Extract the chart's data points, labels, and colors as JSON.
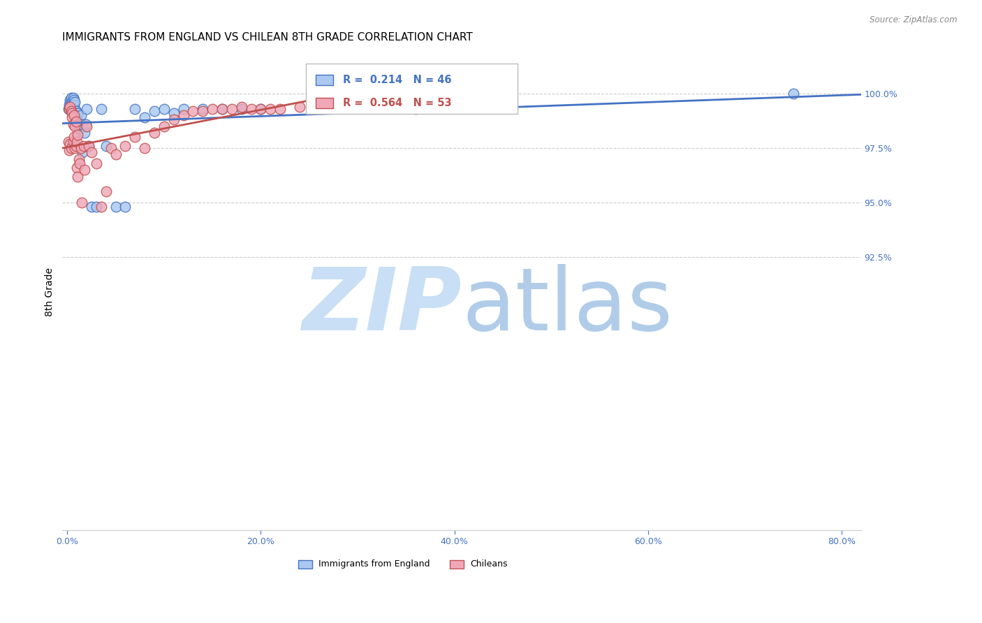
{
  "title": "IMMIGRANTS FROM ENGLAND VS CHILEAN 8TH GRADE CORRELATION CHART",
  "source": "Source: ZipAtlas.com",
  "xlabel_vals": [
    0.0,
    20.0,
    40.0,
    60.0,
    80.0
  ],
  "ylabel_vals": [
    92.5,
    95.0,
    97.5,
    100.0
  ],
  "ylabel_label": "8th Grade",
  "xmin": -0.5,
  "xmax": 82.0,
  "ymin": 80.0,
  "ymax": 101.8,
  "legend_label1": "Immigrants from England",
  "legend_label2": "Chileans",
  "color_blue": "#aac8f0",
  "color_pink": "#f0a8b8",
  "color_blue_line": "#4472c4",
  "color_pink_line": "#c0504d",
  "color_axis_label": "#4472c4",
  "watermark_zip_color": "#c8dff5",
  "watermark_atlas_color": "#b0cce8",
  "england_x": [
    0.1,
    0.2,
    0.3,
    0.3,
    0.4,
    0.4,
    0.5,
    0.5,
    0.6,
    0.6,
    0.7,
    0.7,
    0.8,
    0.8,
    0.9,
    0.9,
    1.0,
    1.0,
    1.1,
    1.2,
    1.3,
    1.4,
    1.5,
    1.6,
    1.8,
    1.9,
    2.0,
    2.2,
    2.5,
    3.0,
    3.5,
    4.0,
    5.0,
    6.0,
    7.0,
    8.0,
    9.0,
    10.0,
    11.0,
    12.0,
    14.0,
    16.0,
    18.0,
    20.0,
    36.0,
    75.0
  ],
  "england_y": [
    99.3,
    99.5,
    99.6,
    99.7,
    99.7,
    99.8,
    99.6,
    99.5,
    99.8,
    99.4,
    99.7,
    99.5,
    99.3,
    99.6,
    98.8,
    99.2,
    98.5,
    99.0,
    99.1,
    98.7,
    98.4,
    99.0,
    98.6,
    97.3,
    98.2,
    98.6,
    99.3,
    97.6,
    94.8,
    94.8,
    99.3,
    97.6,
    94.8,
    94.8,
    99.3,
    98.9,
    99.2,
    99.3,
    99.1,
    99.3,
    99.3,
    99.3,
    99.3,
    99.3,
    99.3,
    100.0
  ],
  "chilean_x": [
    0.1,
    0.2,
    0.2,
    0.3,
    0.3,
    0.4,
    0.4,
    0.5,
    0.5,
    0.6,
    0.6,
    0.7,
    0.7,
    0.8,
    0.8,
    0.9,
    0.9,
    1.0,
    1.0,
    1.1,
    1.1,
    1.2,
    1.3,
    1.4,
    1.5,
    1.7,
    1.8,
    2.0,
    2.2,
    2.5,
    3.0,
    3.5,
    4.0,
    4.5,
    5.0,
    6.0,
    7.0,
    8.0,
    9.0,
    10.0,
    11.0,
    12.0,
    13.0,
    14.0,
    15.0,
    16.0,
    17.0,
    18.0,
    19.0,
    20.0,
    21.0,
    22.0,
    24.0
  ],
  "chilean_y": [
    97.8,
    99.3,
    97.4,
    99.4,
    97.7,
    99.2,
    97.5,
    99.1,
    98.9,
    98.6,
    97.8,
    99.0,
    98.0,
    98.5,
    97.5,
    98.7,
    97.6,
    97.8,
    96.6,
    98.1,
    96.2,
    97.0,
    96.8,
    97.5,
    95.0,
    97.6,
    96.5,
    98.5,
    97.6,
    97.3,
    96.8,
    94.8,
    95.5,
    97.5,
    97.2,
    97.6,
    98.0,
    97.5,
    98.2,
    98.5,
    98.8,
    99.0,
    99.2,
    99.2,
    99.3,
    99.3,
    99.3,
    99.4,
    99.3,
    99.3,
    99.3,
    99.3,
    99.4
  ],
  "grid_color": "#cccccc",
  "bg_color": "#ffffff",
  "title_fontsize": 11,
  "tick_fontsize": 9,
  "blue_trend_start_x": -0.5,
  "blue_trend_end_x": 82.0,
  "pink_trend_start_x": -0.5,
  "pink_trend_end_x": 28.0
}
